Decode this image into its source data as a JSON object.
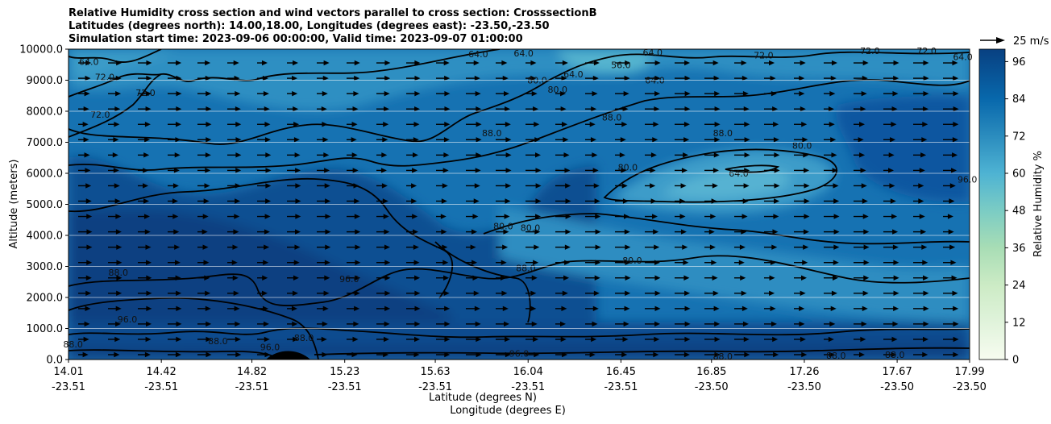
{
  "title": {
    "line1": "Relative Humidity cross section and wind vectors parallel to cross section: CrosssectionB",
    "line2": "Latitudes (degrees north): 14.00,18.00, Longitudes (degrees east): -23.50,-23.50",
    "line3": "Simulation start time: 2023-09-06 00:00:00, Valid time: 2023-09-07 01:00:00"
  },
  "quiver_key": {
    "label": "25 m/s"
  },
  "chart_data": {
    "type": "heatmap",
    "ylabel": "Altitude (meters)",
    "xlabel_lat": "Latitude (degrees N)",
    "xlabel_lon": "Longitude (degrees E)",
    "colorbar_label": "Relative Humidity %",
    "ylim": [
      0,
      10000
    ],
    "y_ticks": [
      "0.0",
      "1000.0",
      "2000.0",
      "3000.0",
      "4000.0",
      "5000.0",
      "6000.0",
      "7000.0",
      "8000.0",
      "9000.0",
      "10000.0"
    ],
    "x_ticks": [
      {
        "lat": "14.01",
        "lon": "-23.51"
      },
      {
        "lat": "14.42",
        "lon": "-23.51"
      },
      {
        "lat": "14.82",
        "lon": "-23.51"
      },
      {
        "lat": "15.23",
        "lon": "-23.51"
      },
      {
        "lat": "15.63",
        "lon": "-23.51"
      },
      {
        "lat": "16.04",
        "lon": "-23.51"
      },
      {
        "lat": "16.45",
        "lon": "-23.51"
      },
      {
        "lat": "16.85",
        "lon": "-23.50"
      },
      {
        "lat": "17.26",
        "lon": "-23.50"
      },
      {
        "lat": "17.67",
        "lon": "-23.50"
      },
      {
        "lat": "17.99",
        "lon": "-23.50"
      }
    ],
    "colorbar_ticks": [
      "0",
      "12",
      "24",
      "36",
      "48",
      "60",
      "72",
      "84",
      "96"
    ],
    "colorbar_range": [
      0,
      100
    ],
    "grid": "horizontal",
    "contour_labels": [
      {
        "text": "64.0",
        "x": 14.1,
        "y": 9600
      },
      {
        "text": "72.0",
        "x": 14.17,
        "y": 9100
      },
      {
        "text": "72.0",
        "x": 14.35,
        "y": 8600
      },
      {
        "text": "72.0",
        "x": 14.15,
        "y": 7900
      },
      {
        "text": "64.0",
        "x": 15.82,
        "y": 9850
      },
      {
        "text": "64.0",
        "x": 16.02,
        "y": 9870
      },
      {
        "text": "64.0",
        "x": 16.24,
        "y": 9200
      },
      {
        "text": "56.0",
        "x": 16.45,
        "y": 9500
      },
      {
        "text": "64.0",
        "x": 16.59,
        "y": 9900
      },
      {
        "text": "64.0",
        "x": 16.6,
        "y": 9000
      },
      {
        "text": "72.0",
        "x": 17.08,
        "y": 9800
      },
      {
        "text": "72.0",
        "x": 17.55,
        "y": 9950
      },
      {
        "text": "72.0",
        "x": 17.8,
        "y": 9950
      },
      {
        "text": "64.0",
        "x": 17.96,
        "y": 9750
      },
      {
        "text": "80.0",
        "x": 16.08,
        "y": 9000
      },
      {
        "text": "80.0",
        "x": 16.17,
        "y": 8700
      },
      {
        "text": "88.0",
        "x": 16.41,
        "y": 7800
      },
      {
        "text": "88.0",
        "x": 15.88,
        "y": 7300
      },
      {
        "text": "88.0",
        "x": 16.9,
        "y": 7300
      },
      {
        "text": "80.0",
        "x": 17.25,
        "y": 6900
      },
      {
        "text": "80.0",
        "x": 16.48,
        "y": 6200
      },
      {
        "text": "64.0",
        "x": 16.97,
        "y": 6000
      },
      {
        "text": "80.0",
        "x": 15.93,
        "y": 4300
      },
      {
        "text": "80.0",
        "x": 16.05,
        "y": 4250
      },
      {
        "text": "80.0",
        "x": 16.5,
        "y": 3200
      },
      {
        "text": "88.0",
        "x": 16.03,
        "y": 2950
      },
      {
        "text": "96.0",
        "x": 15.25,
        "y": 2600
      },
      {
        "text": "88.0",
        "x": 14.23,
        "y": 2800
      },
      {
        "text": "96.0",
        "x": 14.27,
        "y": 1300
      },
      {
        "text": "88.0",
        "x": 14.03,
        "y": 500
      },
      {
        "text": "88.0",
        "x": 14.67,
        "y": 600
      },
      {
        "text": "96.0",
        "x": 14.9,
        "y": 400
      },
      {
        "text": "88.0",
        "x": 15.05,
        "y": 700
      },
      {
        "text": "96.0",
        "x": 16.0,
        "y": 200
      },
      {
        "text": "88.0",
        "x": 16.9,
        "y": 100
      },
      {
        "text": "88.0",
        "x": 17.4,
        "y": 130
      },
      {
        "text": "88.0",
        "x": 17.66,
        "y": 150
      },
      {
        "text": "96.0",
        "x": 17.98,
        "y": 5800
      }
    ]
  }
}
